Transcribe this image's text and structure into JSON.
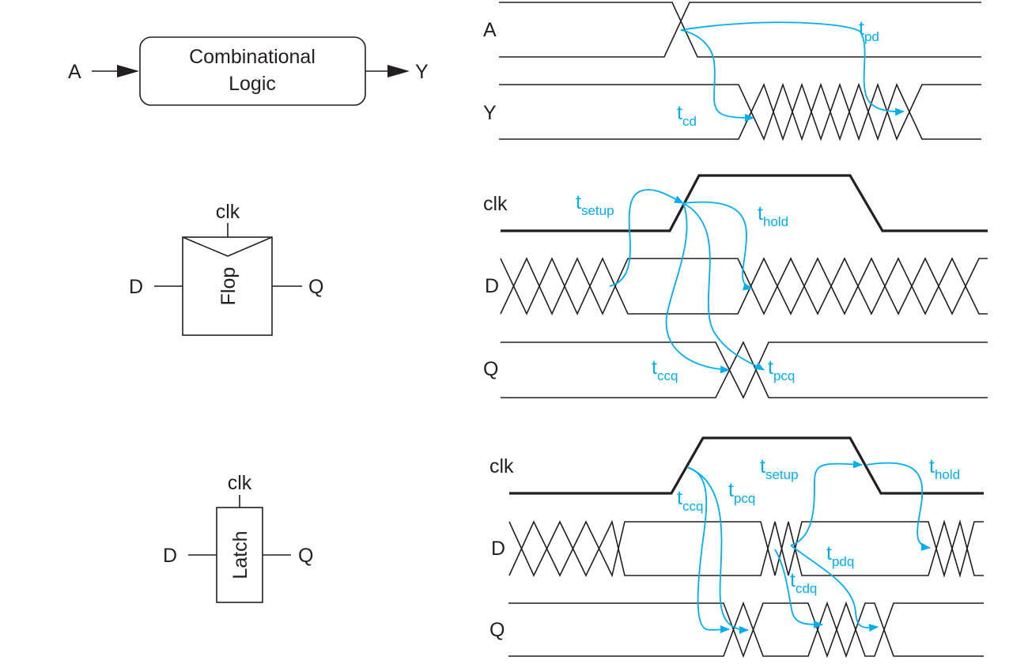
{
  "comb": {
    "input_label": "A",
    "output_label": "Y",
    "box_line1": "Combinational",
    "box_line2": "Logic"
  },
  "flop": {
    "clk_label": "clk",
    "d_label": "D",
    "q_label": "Q",
    "box_label": "Flop"
  },
  "latch": {
    "clk_label": "clk",
    "d_label": "D",
    "q_label": "Q",
    "box_label": "Latch"
  },
  "comb_timing": {
    "sig_a": "A",
    "sig_y": "Y",
    "tpd": {
      "main": "t",
      "sub": "pd"
    },
    "tcd": {
      "main": "t",
      "sub": "cd"
    }
  },
  "flop_timing": {
    "sig_clk": "clk",
    "sig_d": "D",
    "sig_q": "Q",
    "tsetup": {
      "main": "t",
      "sub": "setup"
    },
    "thold": {
      "main": "t",
      "sub": "hold"
    },
    "tccq": {
      "main": "t",
      "sub": "ccq"
    },
    "tpcq": {
      "main": "t",
      "sub": "pcq"
    }
  },
  "latch_timing": {
    "sig_clk": "clk",
    "sig_d": "D",
    "sig_q": "Q",
    "tccq": {
      "main": "t",
      "sub": "ccq"
    },
    "tpcq": {
      "main": "t",
      "sub": "pcq"
    },
    "tsetup": {
      "main": "t",
      "sub": "setup"
    },
    "thold": {
      "main": "t",
      "sub": "hold"
    },
    "tpdq": {
      "main": "t",
      "sub": "pdq"
    },
    "tcdq": {
      "main": "t",
      "sub": "cdq"
    }
  },
  "colors": {
    "timing_arrow": "#00aeef",
    "wire": "#231f20"
  }
}
